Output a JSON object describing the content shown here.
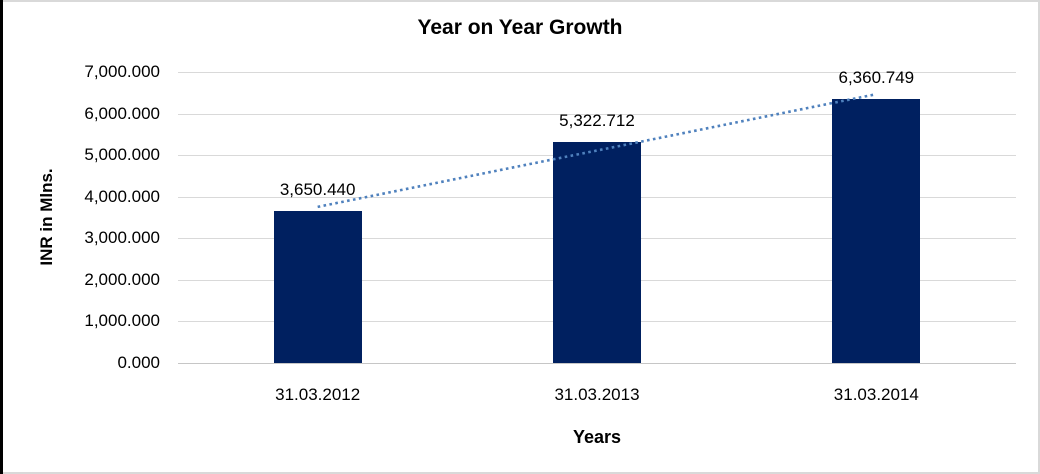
{
  "chart_data": {
    "type": "bar",
    "title": "Year on Year Growth",
    "xlabel": "Years",
    "ylabel": "INR in Mlns.",
    "categories": [
      "31.03.2012",
      "31.03.2013",
      "31.03.2014"
    ],
    "values": [
      3650.44,
      5322.712,
      6360.749
    ],
    "data_labels": [
      "3,650.440",
      "5,322.712",
      "6,360.749"
    ],
    "ylim": [
      0,
      7000
    ],
    "ytick_interval": 1000,
    "yticks": [
      "7,000.000",
      "6,000.000",
      "5,000.000",
      "4,000.000",
      "3,000.000",
      "2,000.000",
      "1,000.000",
      "0.000"
    ],
    "grid": true,
    "legend": false,
    "trendline": {
      "type": "linear",
      "style": "dotted"
    },
    "colors": {
      "bar": "#002060",
      "trendline": "#4f81bd",
      "gridline": "#d9d9d9",
      "axis_line": "#c6c6c6",
      "text": "#000000",
      "frame_border": "#d9d9d9",
      "frame_left_border": "#000000",
      "background": "#ffffff"
    }
  }
}
